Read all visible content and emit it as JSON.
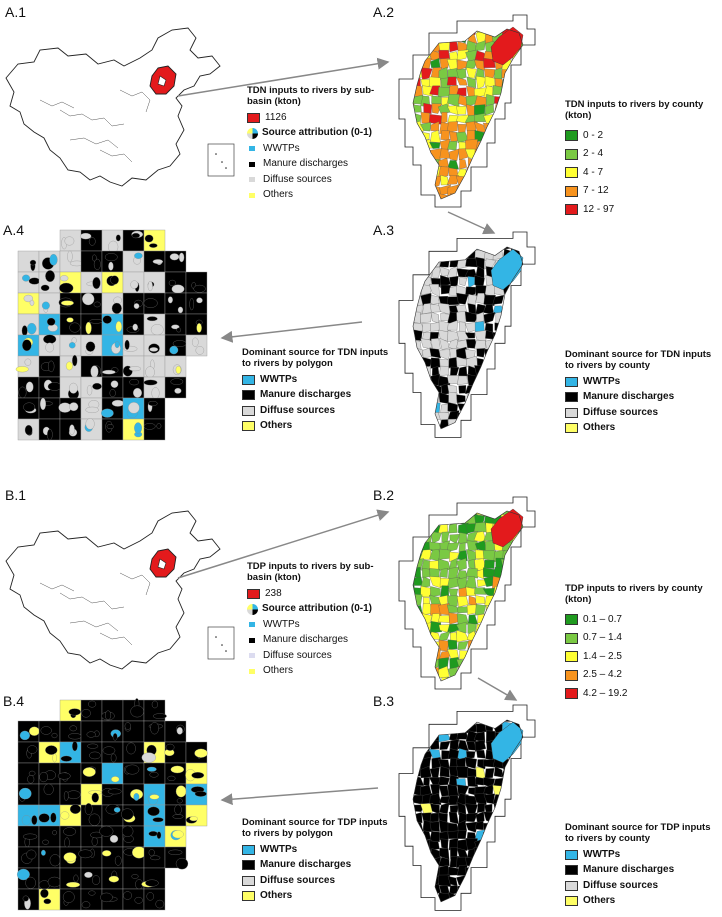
{
  "panels": {
    "a1": "A.1",
    "a2": "A.2",
    "a3": "A.3",
    "a4": "A.4",
    "b1": "B.1",
    "b2": "B.2",
    "b3": "B.3",
    "b4": "B.4"
  },
  "tdn_subbasin": {
    "title": "TDN inputs to rivers by sub-basin (kton)",
    "value": "1126",
    "attribution_title": "Source attribution (0-1)",
    "items": [
      "WWTPs",
      "Manure discharges",
      "Diffuse sources",
      "Others"
    ]
  },
  "tdn_county": {
    "title": "TDN inputs to rivers by county (kton)",
    "classes": [
      "0 - 2",
      "2 - 4",
      "4 - 7",
      "7 - 12",
      "12 - 97"
    ]
  },
  "tdn_dom_county": {
    "title_line1": "Dominant source for TDN inputs",
    "title_line2": "to rivers by county",
    "items": [
      "WWTPs",
      "Manure discharges",
      "Diffuse sources",
      "Others"
    ]
  },
  "tdn_dom_polygon": {
    "title_line1": "Dominant source for TDN inputs",
    "title_line2": "to rivers by polygon",
    "items": [
      "WWTPs",
      "Manure discharges",
      "Diffuse sources",
      "Others"
    ]
  },
  "tdp_subbasin": {
    "title": "TDP inputs to rivers by sub-basin (kton)",
    "value": "238",
    "attribution_title": "Source attribution (0-1)",
    "items": [
      "WWTPs",
      "Manure discharges",
      "Diffuse sources",
      "Others"
    ]
  },
  "tdp_county": {
    "title": "TDP inputs to rivers by county (kton)",
    "classes": [
      "0.1 – 0.7",
      "0.7 – 1.4",
      "1.4 – 2.5",
      "2.5 – 4.2",
      "4.2 – 19.2"
    ]
  },
  "tdp_dom_county": {
    "title_line1": "Dominant source for TDP inputs",
    "title_line2": "to rivers by county",
    "items": [
      "WWTPs",
      "Manure discharges",
      "Diffuse sources",
      "Others"
    ]
  },
  "tdp_dom_polygon": {
    "title_line1": "Dominant source for TDP inputs",
    "title_line2": "to rivers by polygon",
    "items": [
      "WWTPs",
      "Manure discharges",
      "Diffuse sources",
      "Others"
    ]
  },
  "colors": {
    "class_colors": [
      "#1f9a1f",
      "#7ac943",
      "#ffff33",
      "#f7931e",
      "#e31a1c"
    ],
    "wwtp": "#33b5e5",
    "manure": "#000000",
    "diffuse": "#d9d9d9",
    "others": "#ffff66",
    "subbasin": "#e31a1c",
    "arrow": "#888888"
  }
}
